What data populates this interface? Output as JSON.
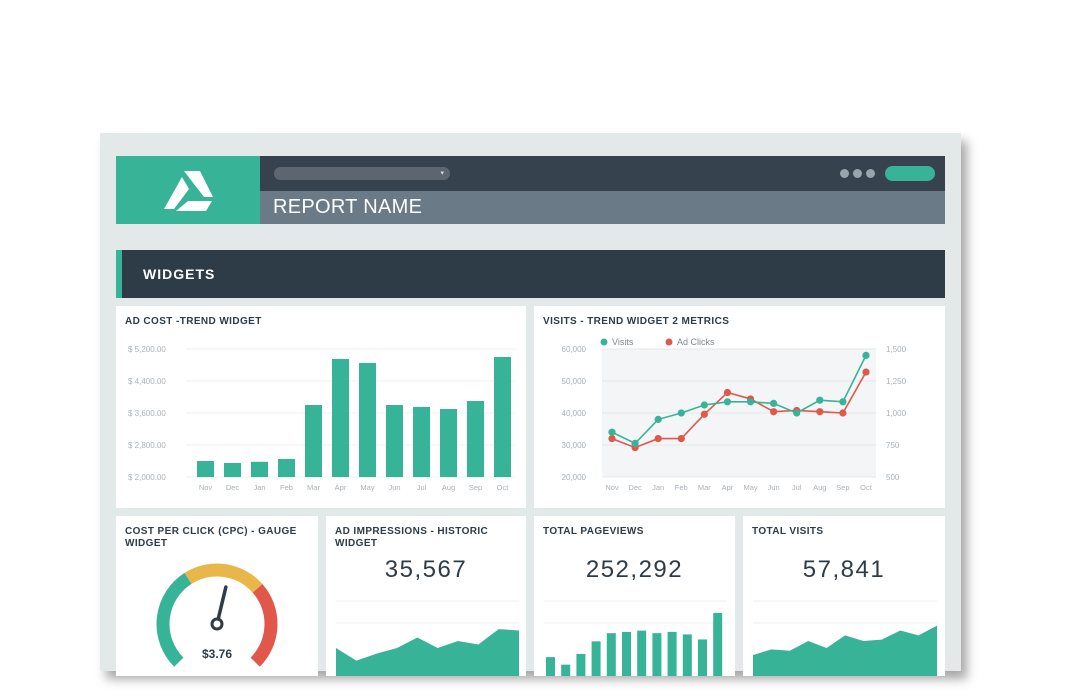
{
  "header": {
    "report_name": "REPORT NAME",
    "dropdown_caret": "▾"
  },
  "section": {
    "title": "WIDGETS"
  },
  "colors": {
    "green": "#37b497",
    "red": "#e0584a",
    "dark": "#2e3c47",
    "gauge_yellow": "#e9b64a"
  },
  "widgets": {
    "ad_cost": {
      "title": "AD COST -TREND WIDGET",
      "y_ticks": [
        "$ 5,200.00",
        "$ 4,400.00",
        "$ 3,600.00",
        "$ 2,800.00",
        "$ 2,000.00"
      ],
      "months": [
        "Nov",
        "Dec",
        "Jan",
        "Feb",
        "Mar",
        "Apr",
        "May",
        "Jun",
        "Jul",
        "Aug",
        "Sep",
        "Oct"
      ]
    },
    "visits_trend": {
      "title": "VISITS - TREND WIDGET 2 METRICS",
      "legend_visits": "Visits",
      "legend_clicks": "Ad Clicks",
      "y_left_ticks": [
        "60,000",
        "50,000",
        "40,000",
        "30,000",
        "20,000"
      ],
      "y_right_ticks": [
        "1,500",
        "1,250",
        "1,000",
        "750",
        "500"
      ],
      "months": [
        "Nov",
        "Dec",
        "Jan",
        "Feb",
        "Mar",
        "Apr",
        "May",
        "Jun",
        "Jul",
        "Aug",
        "Sep",
        "Oct"
      ]
    },
    "cpc": {
      "title_line1": "COST PER CLICK (CPC) - GAUGE",
      "title_line2": "WIDGET",
      "value": "$3.76",
      "gauge_fraction": 0.55
    },
    "impressions": {
      "title_line1": "AD IMPRESSIONS - HISTORIC",
      "title_line2": "WIDGET",
      "value": "35,567"
    },
    "pageviews": {
      "title": "TOTAL PAGEVIEWS",
      "value": "252,292"
    },
    "visits_total": {
      "title": "TOTAL VISITS",
      "value": "57,841"
    }
  },
  "chart_data": [
    {
      "type": "bar",
      "title": "AD COST -TREND WIDGET",
      "categories": [
        "Nov",
        "Dec",
        "Jan",
        "Feb",
        "Mar",
        "Apr",
        "May",
        "Jun",
        "Jul",
        "Aug",
        "Sep",
        "Oct"
      ],
      "values": [
        2400,
        2350,
        2380,
        2450,
        3800,
        4950,
        4850,
        3800,
        3750,
        3700,
        3900,
        5000
      ],
      "ylim": [
        2000,
        5200
      ],
      "grid": true
    },
    {
      "type": "line",
      "title": "VISITS - TREND WIDGET 2 METRICS",
      "categories": [
        "Nov",
        "Dec",
        "Jan",
        "Feb",
        "Mar",
        "Apr",
        "May",
        "Jun",
        "Jul",
        "Aug",
        "Sep",
        "Oct"
      ],
      "series": [
        {
          "name": "Visits",
          "axis": "left",
          "values": [
            34000,
            30500,
            38000,
            40000,
            42500,
            43500,
            43500,
            43000,
            40000,
            44000,
            43500,
            58000
          ]
        },
        {
          "name": "Ad Clicks",
          "axis": "right",
          "values": [
            800,
            730,
            800,
            800,
            990,
            1160,
            1110,
            1010,
            1020,
            1010,
            1000,
            1320
          ]
        }
      ],
      "ylim_left": [
        20000,
        60000
      ],
      "ylim_right": [
        500,
        1500
      ],
      "legend": "top-left"
    },
    {
      "type": "area",
      "title": "AD IMPRESSIONS - HISTORIC WIDGET",
      "values": [
        40,
        22,
        32,
        40,
        55,
        40,
        50,
        45,
        67,
        65
      ]
    },
    {
      "type": "bar",
      "title": "TOTAL PAGEVIEWS",
      "values": [
        30,
        18,
        35,
        55,
        68,
        70,
        72,
        68,
        70,
        66,
        58,
        100
      ]
    },
    {
      "type": "area",
      "title": "TOTAL VISITS",
      "values": [
        30,
        38,
        36,
        50,
        40,
        58,
        50,
        52,
        65,
        58,
        72
      ]
    }
  ]
}
